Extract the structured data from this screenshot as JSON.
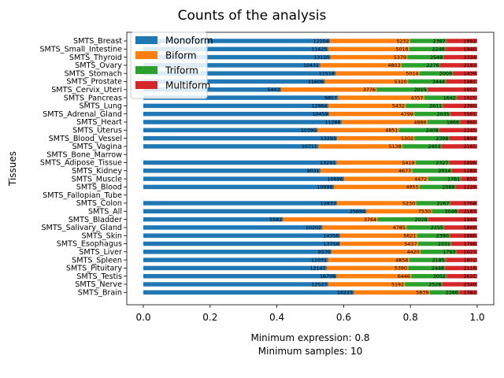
{
  "chart_data": {
    "type": "bar",
    "orientation": "horizontal",
    "stacked": true,
    "normalized": true,
    "title": "Counts of the analysis",
    "xlabel": "",
    "ylabel": "Tissues",
    "xlim": [
      0.0,
      1.0
    ],
    "xticks": [
      "0.0",
      "0.2",
      "0.4",
      "0.6",
      "0.8",
      "1.0"
    ],
    "legend_position": "top-left",
    "grid": false,
    "notes": [
      "Minimum expression: 0.8",
      "Minimum samples: 10"
    ],
    "series": [
      {
        "name": "Monoform",
        "color": "#1f77b4"
      },
      {
        "name": "Biform",
        "color": "#ff7f0e"
      },
      {
        "name": "Triform",
        "color": "#2ca02c"
      },
      {
        "name": "Multiform",
        "color": "#d62728"
      }
    ],
    "categories": [
      "SMTS_Breast",
      "SMTS_Small_Intestine",
      "SMTS_Thyroid",
      "SMTS_Ovary",
      "SMTS_Stomach",
      "SMTS_Prostate",
      "SMTS_Cervix_Uteri",
      "SMTS_Pancreas",
      "SMTS_Lung",
      "SMTS_Adrenal_Gland",
      "SMTS_Heart",
      "SMTS_Uterus",
      "SMTS_Blood_Vessel",
      "SMTS_Vagina",
      "SMTS_Bone_Marrow",
      "SMTS_Adipose_Tissue",
      "SMTS_Kidney",
      "SMTS_Muscle",
      "SMTS_Blood",
      "SMTS_Fallopian_Tube",
      "SMTS_Colon",
      "SMTS_All",
      "SMTS_Bladder",
      "SMTS_Salivary_Gland",
      "SMTS_Skin",
      "SMTS_Esophagus",
      "SMTS_Liver",
      "SMTS_Spleen",
      "SMTS_Pituitary",
      "SMTS_Testis",
      "SMTS_Nerve",
      "SMTS_Brain"
    ],
    "values": [
      [
        12204,
        5232,
        2387,
        1992
      ],
      [
        11425,
        5016,
        2246,
        1940
      ],
      [
        13110,
        5379,
        2549,
        2334
      ],
      [
        10431,
        4803,
        2276,
        2183
      ],
      [
        11518,
        5014,
        2009,
        1439
      ],
      [
        11606,
        5320,
        2444,
        1981
      ],
      [
        5443,
        3776,
        2015,
        1952
      ],
      [
        9857,
        4357,
        1642,
        1025
      ],
      [
        12964,
        5432,
        2611,
        2390
      ],
      [
        10459,
        4799,
        2035,
        1501
      ],
      [
        11288,
        4886,
        1866,
        960
      ],
      [
        10390,
        4851,
        2408,
        2245
      ],
      [
        13293,
        5302,
        2398,
        1894
      ],
      [
        10711,
        5138,
        2403,
        2165
      ],
      [
        null,
        null,
        null,
        null
      ],
      [
        13291,
        5419,
        2327,
        1896
      ],
      [
        9031,
        4677,
        2014,
        1289
      ],
      [
        10696,
        4472,
        1761,
        855
      ],
      [
        10996,
        4955,
        2088,
        1226
      ],
      [
        null,
        null,
        null,
        null
      ],
      [
        12833,
        5230,
        2267,
        1768
      ],
      [
        25694,
        7530,
        3046,
        2165
      ],
      [
        5582,
        3764,
        2028,
        1944
      ],
      [
        10202,
        4785,
        2155,
        1869
      ],
      [
        14356,
        5621,
        2390,
        1986
      ],
      [
        13756,
        5437,
        2331,
        1796
      ],
      [
        9370,
        4420,
        1793,
        1023
      ],
      [
        11031,
        4858,
        2185,
        1872
      ],
      [
        12147,
        5390,
        2448,
        2119
      ],
      [
        16709,
        6446,
        3052,
        2631
      ],
      [
        12527,
        5192,
        2528,
        2349
      ],
      [
        16225,
        5839,
        2266,
        1382
      ]
    ]
  }
}
